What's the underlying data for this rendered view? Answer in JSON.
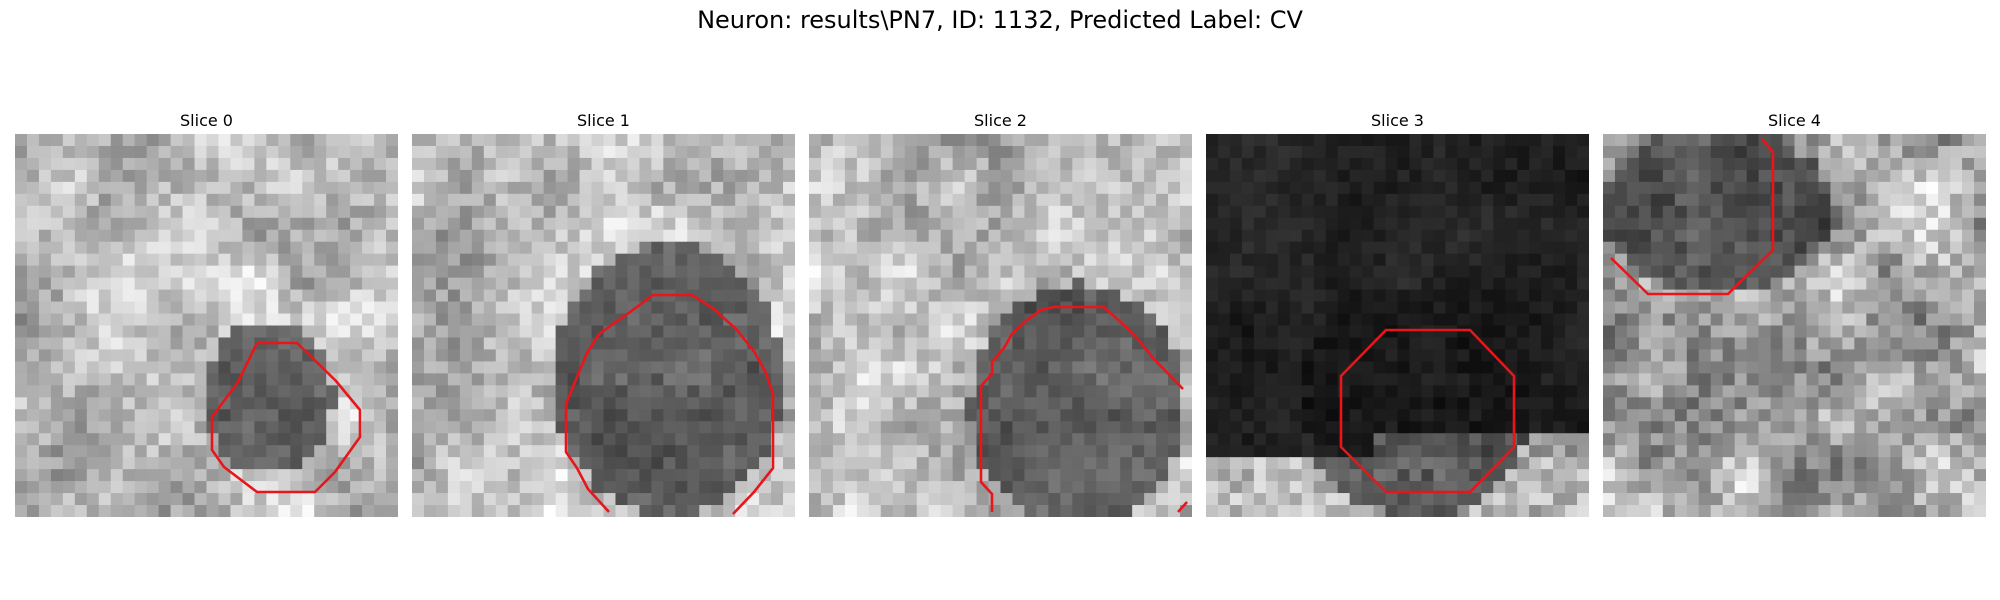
{
  "figure": {
    "title": "Neuron: results\\PN7, ID: 1132, Predicted Label: CV"
  },
  "panels": [
    {
      "title": "Slice 0",
      "seed": 11,
      "tone": "light",
      "blob": [
        0.66,
        0.69,
        0.17,
        0.2
      ]
    },
    {
      "title": "Slice 1",
      "seed": 23,
      "tone": "light",
      "blob": [
        0.67,
        0.64,
        0.3,
        0.36
      ]
    },
    {
      "title": "Slice 2",
      "seed": 37,
      "tone": "light",
      "blob": [
        0.7,
        0.71,
        0.28,
        0.32
      ]
    },
    {
      "title": "Slice 3",
      "seed": 51,
      "tone": "dark",
      "blob": [
        0.55,
        0.7,
        0.3,
        0.3
      ]
    },
    {
      "title": "Slice 4",
      "seed": 67,
      "tone": "mid",
      "blob": [
        0.3,
        0.2,
        0.3,
        0.22
      ]
    }
  ],
  "colors": {
    "contour": "#e8151b"
  }
}
